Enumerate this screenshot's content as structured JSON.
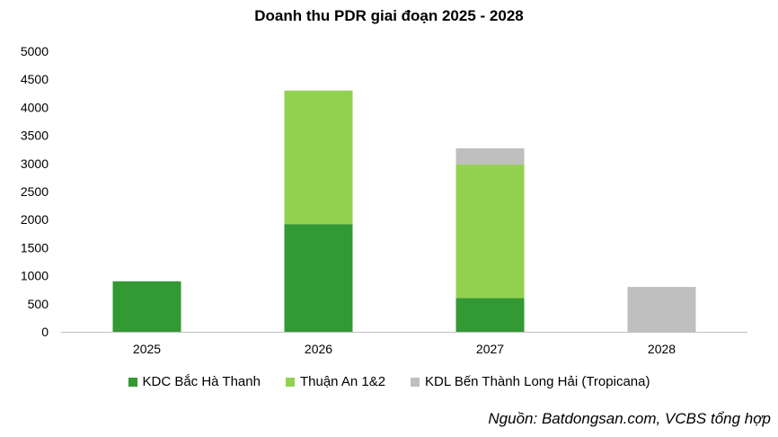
{
  "chart_data": {
    "type": "bar",
    "stacked": true,
    "title": "Doanh thu PDR giai đoạn 2025 - 2028",
    "categories": [
      "2025",
      "2026",
      "2027",
      "2028"
    ],
    "series": [
      {
        "name": "KDC Bắc Hà Thanh",
        "color": "#339933",
        "values": [
          900,
          1920,
          600,
          0
        ]
      },
      {
        "name": "Thuận An 1&2",
        "color": "#92d050",
        "values": [
          0,
          2380,
          2380,
          0
        ]
      },
      {
        "name": "KDL Bến Thành Long Hải (Tropicana)",
        "color": "#bfbfbf",
        "values": [
          0,
          0,
          290,
          800
        ]
      }
    ],
    "ylim": [
      0,
      5000
    ],
    "yticks": [
      "0",
      "500",
      "1000",
      "1500",
      "2000",
      "2500",
      "3000",
      "3500",
      "4000",
      "4500",
      "5000"
    ],
    "grid": false,
    "legend_position": "bottom"
  },
  "source": "Nguồn: Batdongsan.com, VCBS tổng hợp"
}
